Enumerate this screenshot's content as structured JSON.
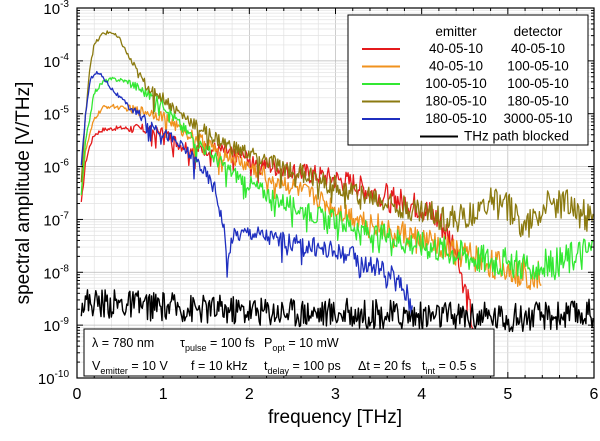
{
  "chart_data": {
    "type": "line",
    "xlabel": "frequency [THz]",
    "ylabel": "spectral amplitude [V/THz]",
    "xlim": [
      0,
      6
    ],
    "ylim": [
      1e-10,
      0.001
    ],
    "yscale": "log",
    "grid": true,
    "x_ticks": [
      "0",
      "1",
      "2",
      "3",
      "4",
      "5",
      "6"
    ],
    "y_ticks": [
      {
        "base": "10",
        "exp": "-10"
      },
      {
        "base": "10",
        "exp": "-9"
      },
      {
        "base": "10",
        "exp": "-8"
      },
      {
        "base": "10",
        "exp": "-7"
      },
      {
        "base": "10",
        "exp": "-6"
      },
      {
        "base": "10",
        "exp": "-5"
      },
      {
        "base": "10",
        "exp": "-4"
      },
      {
        "base": "10",
        "exp": "-3"
      }
    ],
    "legend": {
      "placement": "top-right",
      "col1_header": "emitter",
      "col2_header": "detector",
      "rows": [
        {
          "emitter": "40-05-10",
          "detector": "40-05-10",
          "color": "#e41a1c"
        },
        {
          "emitter": "40-05-10",
          "detector": "100-05-10",
          "color": "#f0921e"
        },
        {
          "emitter": "100-05-10",
          "detector": "100-05-10",
          "color": "#33e833"
        },
        {
          "emitter": "180-05-10",
          "detector": "180-05-10",
          "color": "#8b7a10"
        },
        {
          "emitter": "180-05-10",
          "detector": "3000-05-10",
          "color": "#1f2fbf"
        }
      ],
      "blocked": {
        "label": "THz path blocked",
        "color": "#000000"
      }
    },
    "annotation": {
      "line1": [
        {
          "t": "λ = 780 nm"
        },
        {
          "t": "τ",
          "sub": "pulse",
          "rest": " = 100 fs"
        },
        {
          "t": "P",
          "sub": "opt",
          "rest": " = 10 mW"
        }
      ],
      "line2": [
        {
          "t": "V",
          "sub": "emitter",
          "rest": " = 10 V"
        },
        {
          "t": "f = 10 kHz"
        },
        {
          "t": "t",
          "sub": "delay",
          "rest": " = 100 ps"
        },
        {
          "t": "Δt = 20 fs"
        },
        {
          "t": "t",
          "sub": "int",
          "rest": " = 0.5 s"
        }
      ]
    },
    "series": [
      {
        "color": "#e41a1c",
        "x": [
          0.05,
          0.1,
          0.15,
          0.2,
          0.3,
          0.4,
          0.5,
          0.6,
          0.7,
          0.8,
          0.9,
          1.0,
          1.1,
          1.2,
          1.4,
          1.6,
          1.8,
          2.0,
          2.2,
          2.4,
          2.6,
          2.8,
          3.0,
          3.2,
          3.4,
          3.6,
          3.8,
          4.0,
          4.2,
          4.4,
          4.5,
          4.6
        ],
        "y": [
          2e-07,
          1.2e-06,
          2.5e-06,
          4e-06,
          5e-06,
          5.2e-06,
          5.4e-06,
          5.3e-06,
          5.2e-06,
          5e-06,
          4.8e-06,
          4.5e-06,
          3.5e-06,
          2.6e-06,
          2.2e-06,
          2.2e-06,
          1.8e-06,
          1.5e-06,
          1.1e-06,
          9e-07,
          8e-07,
          7e-07,
          6e-07,
          5e-07,
          3.5e-07,
          3e-07,
          2.2e-07,
          1.8e-07,
          1e-07,
          3e-08,
          5e-09,
          1e-09
        ]
      },
      {
        "color": "#f0921e",
        "x": [
          0.05,
          0.1,
          0.2,
          0.3,
          0.4,
          0.5,
          0.6,
          0.7,
          0.8,
          0.9,
          1.0,
          1.1,
          1.2,
          1.4,
          1.6,
          1.8,
          2.0,
          2.2,
          2.4,
          2.6,
          2.8,
          3.0,
          3.2,
          3.4,
          3.6,
          3.8,
          4.0,
          4.2,
          4.4,
          4.6,
          4.8,
          5.0,
          5.2,
          5.4
        ],
        "y": [
          3e-07,
          2e-06,
          8e-06,
          1.3e-05,
          1.4e-05,
          1.3e-05,
          1.2e-05,
          1.15e-05,
          1.1e-05,
          1e-05,
          9e-06,
          7e-06,
          5e-06,
          3.5e-06,
          2.2e-06,
          1.5e-06,
          1e-06,
          7e-07,
          5e-07,
          3.5e-07,
          2.5e-07,
          1.6e-07,
          1.2e-07,
          9e-08,
          7e-08,
          5.5e-08,
          4e-08,
          3.5e-08,
          2.5e-08,
          2e-08,
          1.5e-08,
          1.2e-08,
          1e-08,
          9e-09
        ]
      },
      {
        "color": "#33e833",
        "x": [
          0.05,
          0.1,
          0.2,
          0.3,
          0.4,
          0.5,
          0.6,
          0.7,
          0.8,
          0.9,
          1.0,
          1.1,
          1.2,
          1.4,
          1.6,
          1.8,
          2.0,
          2.2,
          2.4,
          2.6,
          2.8,
          3.0,
          3.2,
          3.4,
          3.6,
          3.8,
          4.0,
          4.2,
          4.4,
          4.6,
          4.8,
          5.0,
          5.2,
          5.4,
          5.6,
          5.8,
          6.0
        ],
        "y": [
          3e-07,
          3e-06,
          2.5e-05,
          4e-05,
          4.5e-05,
          4.4e-05,
          4e-05,
          3.2e-05,
          2.5e-05,
          2e-05,
          1.6e-05,
          1e-05,
          6e-06,
          3e-06,
          1.5e-06,
          8e-07,
          5e-07,
          3.2e-07,
          2.2e-07,
          1.6e-07,
          1.2e-07,
          1e-07,
          8e-08,
          6e-08,
          5e-08,
          4e-08,
          3.5e-08,
          3e-08,
          2.5e-08,
          2e-08,
          1.8e-08,
          1.6e-08,
          1.5e-08,
          1.4e-08,
          1.6e-08,
          2.2e-08,
          3e-08
        ]
      },
      {
        "color": "#8b7a10",
        "x": [
          0.05,
          0.1,
          0.15,
          0.2,
          0.3,
          0.4,
          0.5,
          0.6,
          0.7,
          0.8,
          1.0,
          1.2,
          1.4,
          1.6,
          1.8,
          2.0,
          2.2,
          2.4,
          2.6,
          2.8,
          3.0,
          3.2,
          3.4,
          3.6,
          3.8,
          4.0,
          4.2,
          4.4,
          4.6,
          4.8,
          5.0,
          5.2,
          5.4,
          5.6,
          5.8,
          6.0
        ],
        "y": [
          5e-07,
          1e-05,
          8e-05,
          0.0002,
          0.00033,
          0.00035,
          0.00025,
          0.00012,
          6e-05,
          3.5e-05,
          2e-05,
          1e-05,
          6e-06,
          3.5e-06,
          2.3e-06,
          1.8e-06,
          1.3e-06,
          1e-06,
          8e-07,
          6e-07,
          4.5e-07,
          3.5e-07,
          2.8e-07,
          2.2e-07,
          1.8e-07,
          1.5e-07,
          1.2e-07,
          1e-07,
          1.5e-07,
          2.2e-07,
          1.8e-07,
          8e-08,
          1.8e-07,
          2.2e-07,
          1.5e-07,
          9e-08
        ]
      },
      {
        "color": "#1f2fbf",
        "x": [
          0.05,
          0.1,
          0.15,
          0.2,
          0.25,
          0.3,
          0.4,
          0.5,
          0.6,
          0.7,
          0.8,
          0.9,
          1.0,
          1.1,
          1.2,
          1.4,
          1.5,
          1.6,
          1.7,
          1.75,
          1.8,
          2.0,
          2.2,
          2.4,
          2.6,
          2.8,
          3.0,
          3.2,
          3.4,
          3.6,
          3.8,
          3.9
        ],
        "y": [
          1e-06,
          1e-05,
          4e-05,
          6e-05,
          5.8e-05,
          5e-05,
          3e-05,
          2e-05,
          1.4e-05,
          1e-05,
          8e-06,
          6e-06,
          4.5e-06,
          3.5e-06,
          2.5e-06,
          1.3e-06,
          7e-07,
          4e-07,
          8e-08,
          1.5e-08,
          5e-08,
          6e-08,
          5e-08,
          4e-08,
          3.5e-08,
          3e-08,
          2.5e-08,
          2e-08,
          1.5e-08,
          1e-08,
          5e-09,
          2e-09
        ]
      },
      {
        "color": "#000000",
        "x": [
          0.05,
          0.5,
          1.0,
          1.5,
          2.0,
          2.5,
          3.0,
          3.5,
          4.0,
          4.5,
          5.0,
          5.5,
          6.0
        ],
        "y": [
          2.8e-09,
          2.5e-09,
          2.2e-09,
          2e-09,
          1.9e-09,
          1.8e-09,
          1.7e-09,
          1.6e-09,
          1.5e-09,
          1.5e-09,
          1.4e-09,
          1.5e-09,
          1.7e-09
        ]
      }
    ]
  }
}
